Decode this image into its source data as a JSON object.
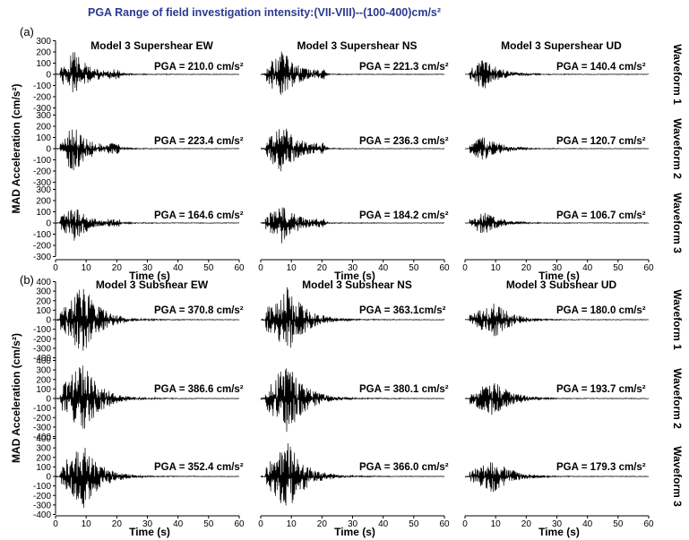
{
  "header": "PGA Range of field investigation intensity:(VII-VIII)--(100-400)cm/s²",
  "colors": {
    "header": "#2b3a8f",
    "trace": "#000000",
    "axis": "#000000"
  },
  "time_axis": {
    "label": "Time (s)",
    "ticks": [
      "0",
      "10",
      "20",
      "30",
      "40",
      "50",
      "60"
    ],
    "lim": [
      0,
      60
    ]
  },
  "ylabel": "MAD Acceleration (cm/s²)",
  "waveform_labels": [
    "Waveform 1",
    "Waveform 2",
    "Waveform 3"
  ],
  "chart_data": [
    {
      "type": "line",
      "panel": "(a)",
      "ylabel": "MAD Acceleration (cm/s²)",
      "ylim": [
        -300,
        300
      ],
      "yticks": [
        "300",
        "200",
        "100",
        "0",
        "-100",
        "-200",
        "-300"
      ],
      "xlabel": "Time (s)",
      "xlim": [
        0,
        60
      ],
      "columns": [
        "Model 3 Supershear  EW",
        "Model 3 Supershear  NS",
        "Model 3 Supershear  UD"
      ],
      "rows": [
        "Waveform 1",
        "Waveform 2",
        "Waveform 3"
      ],
      "pga_labels": [
        [
          "PGA = 210.0 cm/s²",
          "PGA = 221.3 cm/s²",
          "PGA = 140.4 cm/s²"
        ],
        [
          "PGA = 223.4 cm/s²",
          "PGA = 236.3 cm/s²",
          "PGA = 120.7 cm/s²"
        ],
        [
          "PGA  = 164.6 cm/s²",
          "PGA  = 184.2 cm/s²",
          "PGA  = 106.7 cm/s²"
        ]
      ],
      "pga_values": [
        [
          210.0,
          221.3,
          140.4
        ],
        [
          223.4,
          236.3,
          120.7
        ],
        [
          164.6,
          184.2,
          106.7
        ]
      ],
      "trace_extent_s": [
        [
          25,
          22,
          25
        ],
        [
          25,
          22,
          25
        ],
        [
          25,
          22,
          25
        ]
      ]
    },
    {
      "type": "line",
      "panel": "(b)",
      "ylabel": "MAD Acceleration (cm/s²)",
      "ylim": [
        -400,
        400
      ],
      "yticks": [
        "400",
        "300",
        "200",
        "100",
        "0",
        "-100",
        "-200",
        "-300",
        "-400"
      ],
      "xlabel": "Time (s)",
      "xlim": [
        0,
        60
      ],
      "columns": [
        "Model 3 Subshear EW",
        "Model 3 Subshear NS",
        "Model 3 Subshear UD"
      ],
      "rows": [
        "Waveform 1",
        "Waveform 2",
        "Waveform 3"
      ],
      "pga_labels": [
        [
          "PGA = 370.8 cm/s²",
          "PGA = 363.1cm/s²",
          "PGA = 180.0 cm/s²"
        ],
        [
          "PGA = 386.6 cm/s²",
          "PGA = 380.1 cm/s²",
          "PGA = 193.7 cm/s²"
        ],
        [
          "PGA = 352.4 cm/s²",
          "PGA = 366.0 cm/s²",
          "PGA = 179.3 cm/s²"
        ]
      ],
      "pga_values": [
        [
          370.8,
          363.1,
          180.0
        ],
        [
          386.6,
          380.1,
          193.7
        ],
        [
          352.4,
          366.0,
          179.3
        ]
      ],
      "trace_extent_s": [
        [
          30,
          30,
          30
        ],
        [
          30,
          30,
          30
        ],
        [
          30,
          30,
          30
        ]
      ]
    }
  ]
}
